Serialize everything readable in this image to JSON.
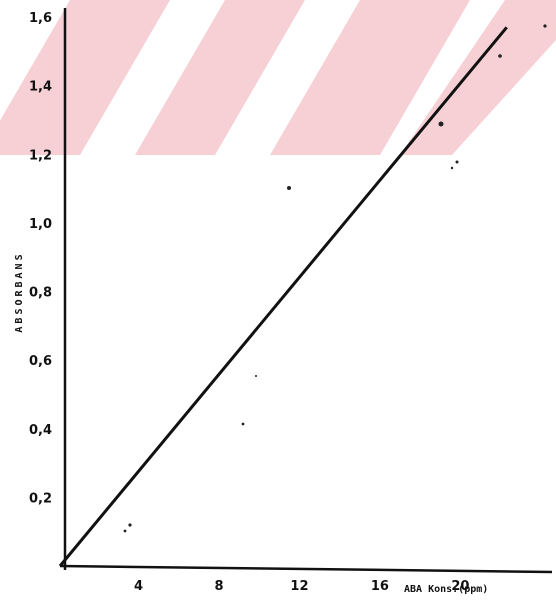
{
  "chart_data": {
    "type": "line",
    "title": "",
    "xlabel": "ABA Kons.(ppm)",
    "ylabel": "ABSORBANS",
    "xlim": [
      0,
      24.6
    ],
    "ylim": [
      0,
      1.6
    ],
    "x_ticks": [
      4,
      8,
      12,
      16,
      20
    ],
    "x_tick_labels": [
      "4",
      "8",
      "12",
      "16",
      "20"
    ],
    "y_ticks": [
      0.2,
      0.4,
      0.6,
      0.8,
      1.0,
      1.2,
      1.4,
      1.6
    ],
    "y_tick_labels": [
      "0,2",
      "0,4",
      "0,6",
      "0,8",
      "1,0",
      "1,2",
      "1,4",
      "1,6"
    ],
    "grid": false,
    "legend": "none",
    "series": [
      {
        "x": [
          0.1,
          22.3
        ],
        "y": [
          0.0,
          1.57
        ]
      }
    ],
    "colors": {
      "line": "#111111",
      "axis": "#111111",
      "watermark": "#f7d0d5"
    }
  }
}
